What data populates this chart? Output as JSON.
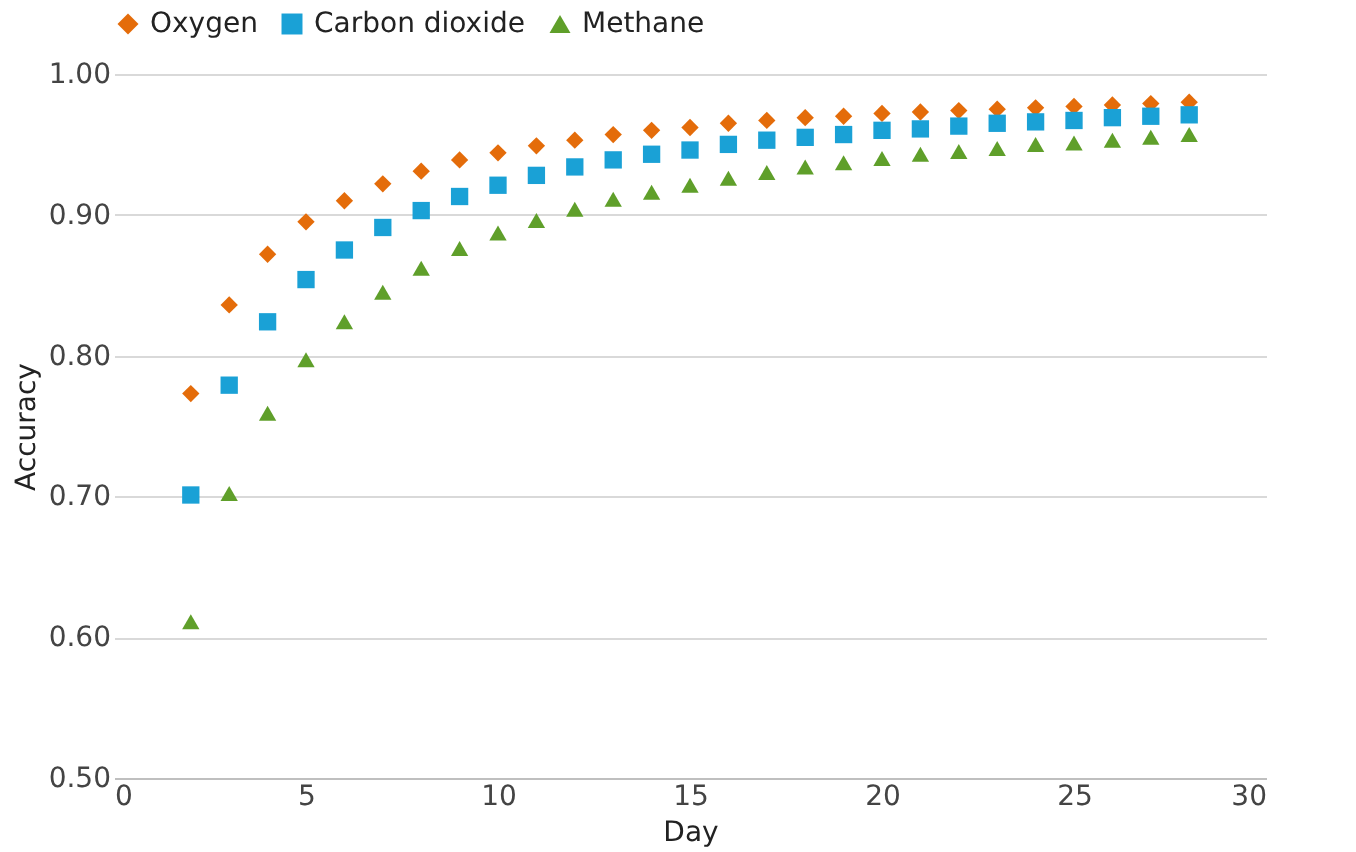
{
  "chart_data": {
    "type": "scatter",
    "xlabel": "Day",
    "ylabel": "Accuracy",
    "legend": "top",
    "grid": "y",
    "x": [
      2,
      3,
      4,
      5,
      6,
      7,
      8,
      9,
      10,
      11,
      12,
      13,
      14,
      15,
      16,
      17,
      18,
      19,
      20,
      21,
      22,
      23,
      24,
      25,
      26,
      27,
      28
    ],
    "series": [
      {
        "name": "Oxygen",
        "color": "#e46c0a",
        "marker": "diamond",
        "values": [
          0.773,
          0.836,
          0.872,
          0.895,
          0.91,
          0.922,
          0.931,
          0.939,
          0.944,
          0.949,
          0.953,
          0.957,
          0.96,
          0.962,
          0.965,
          0.967,
          0.969,
          0.97,
          0.972,
          0.973,
          0.974,
          0.975,
          0.976,
          0.977,
          0.978,
          0.979,
          0.98
        ]
      },
      {
        "name": "Carbon dioxide",
        "color": "#1aa1d6",
        "marker": "square",
        "values": [
          0.701,
          0.779,
          0.824,
          0.854,
          0.875,
          0.891,
          0.903,
          0.913,
          0.921,
          0.928,
          0.934,
          0.939,
          0.943,
          0.946,
          0.95,
          0.953,
          0.955,
          0.957,
          0.96,
          0.961,
          0.963,
          0.965,
          0.966,
          0.967,
          0.969,
          0.97,
          0.971
        ]
      },
      {
        "name": "Methane",
        "color": "#5f9f2a",
        "marker": "triangle",
        "values": [
          0.611,
          0.702,
          0.759,
          0.797,
          0.824,
          0.845,
          0.862,
          0.876,
          0.887,
          0.896,
          0.904,
          0.911,
          0.916,
          0.921,
          0.926,
          0.93,
          0.934,
          0.937,
          0.94,
          0.943,
          0.945,
          0.947,
          0.95,
          0.951,
          0.953,
          0.955,
          0.957
        ]
      }
    ],
    "xlim": [
      0,
      30
    ],
    "xticks": [
      0,
      5,
      10,
      15,
      20,
      25,
      30
    ],
    "ylim": [
      0.5,
      1.0
    ],
    "yticks": [
      {
        "value": 0.5,
        "label": "0.50"
      },
      {
        "value": 0.6,
        "label": "0.60"
      },
      {
        "value": 0.7,
        "label": "0.70"
      },
      {
        "value": 0.8,
        "label": "0.80"
      },
      {
        "value": 0.9,
        "label": "0.90"
      },
      {
        "value": 1.0,
        "label": "1.00"
      }
    ]
  }
}
